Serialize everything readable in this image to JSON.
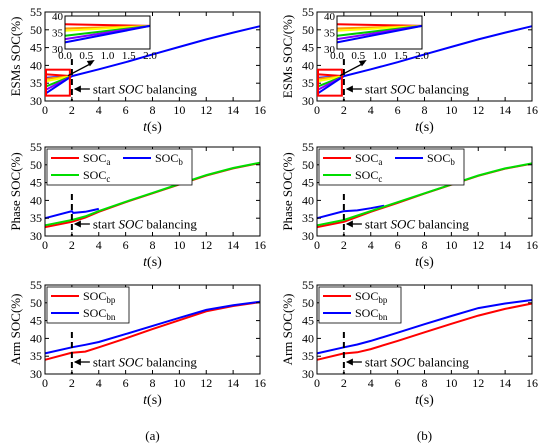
{
  "chart_data": [
    {
      "type": "line",
      "column": "a",
      "row": 0,
      "ylabel_pre": "ESMs SOC(%)",
      "ylabel_sep": "",
      "ylabel_post": "",
      "xlabel_pre": "",
      "xlabel_it": "t",
      "xlabel_post": "(s)",
      "xlim": [
        0,
        16
      ],
      "ylim": [
        30,
        55
      ],
      "xticks": [
        "0",
        "2",
        "4",
        "6",
        "8",
        "10",
        "12",
        "14",
        "16"
      ],
      "yticks": [
        "30",
        "35",
        "40",
        "45",
        "50",
        "55"
      ],
      "annotation": {
        "pre": "start ",
        "it": "SOC",
        "post": " balancing"
      },
      "balance_time": 2,
      "legend": [],
      "series": [
        {
          "color": "#0000ff",
          "x": [
            0,
            2,
            4,
            6,
            8,
            10,
            12,
            14,
            16
          ],
          "y": [
            36.5,
            37,
            38.9,
            40.9,
            43.1,
            45.2,
            47.3,
            49.2,
            51
          ]
        },
        {
          "color": "#ff0000",
          "x": [
            0,
            2
          ],
          "y": [
            37.5,
            37
          ]
        },
        {
          "color": "#ff9900",
          "x": [
            0,
            2
          ],
          "y": [
            36.2,
            37
          ]
        },
        {
          "color": "#ffff00",
          "x": [
            0,
            2
          ],
          "y": [
            35.5,
            37
          ]
        },
        {
          "color": "#00cc00",
          "x": [
            0,
            2
          ],
          "y": [
            34,
            37
          ]
        },
        {
          "color": "#8000ff",
          "x": [
            0,
            2
          ],
          "y": [
            33,
            37
          ]
        },
        {
          "color": "#0000ff",
          "x": [
            0,
            2
          ],
          "y": [
            32,
            37
          ]
        }
      ],
      "inset": {
        "xlim": [
          0,
          2
        ],
        "ylim": [
          30,
          40
        ],
        "xticks": [
          "0.0",
          "0.5",
          "1.0",
          "1.5",
          "2.0"
        ],
        "yticks": [
          "30",
          "35",
          "40"
        ],
        "series": [
          {
            "color": "#ff0000",
            "x": [
              0,
              2
            ],
            "y": [
              37.5,
              37
            ]
          },
          {
            "color": "#ff9900",
            "x": [
              0,
              2
            ],
            "y": [
              36.2,
              37
            ]
          },
          {
            "color": "#ffff00",
            "x": [
              0,
              2
            ],
            "y": [
              35.5,
              37
            ]
          },
          {
            "color": "#00cc00",
            "x": [
              0,
              2
            ],
            "y": [
              34,
              37
            ]
          },
          {
            "color": "#8000ff",
            "x": [
              0,
              2
            ],
            "y": [
              33,
              37
            ]
          },
          {
            "color": "#0000ff",
            "x": [
              0,
              2
            ],
            "y": [
              32,
              37
            ]
          }
        ]
      }
    },
    {
      "type": "line",
      "column": "b",
      "row": 0,
      "ylabel_pre": "ESMs SOC",
      "ylabel_sep": "/",
      "ylabel_post": "(%)",
      "xlabel_pre": "",
      "xlabel_it": "t",
      "xlabel_post": "(s)",
      "xlim": [
        0,
        16
      ],
      "ylim": [
        30,
        55
      ],
      "xticks": [
        "0",
        "2",
        "4",
        "6",
        "8",
        "10",
        "12",
        "14",
        "16"
      ],
      "yticks": [
        "30",
        "35",
        "40",
        "45",
        "50",
        "55"
      ],
      "annotation": {
        "pre": "start ",
        "it": "SOC",
        "post": " balancing"
      },
      "balance_time": 2,
      "legend": [],
      "series": [
        {
          "color": "#0000ff",
          "x": [
            0,
            2,
            4,
            6,
            8,
            10,
            12,
            14,
            16
          ],
          "y": [
            36.5,
            37,
            38.9,
            40.9,
            43.1,
            45.2,
            47.3,
            49.2,
            51
          ]
        },
        {
          "color": "#ff0000",
          "x": [
            0,
            2
          ],
          "y": [
            37.5,
            37
          ]
        },
        {
          "color": "#ff9900",
          "x": [
            0,
            2
          ],
          "y": [
            36.2,
            37
          ]
        },
        {
          "color": "#ffff00",
          "x": [
            0,
            2
          ],
          "y": [
            35.5,
            37
          ]
        },
        {
          "color": "#00cc00",
          "x": [
            0,
            2
          ],
          "y": [
            34,
            37
          ]
        },
        {
          "color": "#8000ff",
          "x": [
            0,
            2
          ],
          "y": [
            33,
            37
          ]
        },
        {
          "color": "#0000ff",
          "x": [
            0,
            2
          ],
          "y": [
            32,
            37
          ]
        }
      ],
      "inset": {
        "xlim": [
          0,
          2
        ],
        "ylim": [
          30,
          40
        ],
        "xticks": [
          "0.0",
          "0.5",
          "1.0",
          "1.5",
          "2.0"
        ],
        "yticks": [
          "30",
          "35",
          "40"
        ],
        "series": [
          {
            "color": "#ff0000",
            "x": [
              0,
              2
            ],
            "y": [
              37.5,
              37
            ]
          },
          {
            "color": "#ff9900",
            "x": [
              0,
              2
            ],
            "y": [
              36.2,
              37
            ]
          },
          {
            "color": "#ffff00",
            "x": [
              0,
              2
            ],
            "y": [
              35.5,
              37
            ]
          },
          {
            "color": "#00cc00",
            "x": [
              0,
              2
            ],
            "y": [
              34,
              37
            ]
          },
          {
            "color": "#8000ff",
            "x": [
              0,
              2
            ],
            "y": [
              33,
              37
            ]
          },
          {
            "color": "#0000ff",
            "x": [
              0,
              2
            ],
            "y": [
              32,
              37
            ]
          }
        ]
      }
    },
    {
      "type": "line",
      "column": "a",
      "row": 1,
      "ylabel_pre": "Phase SOC(%)",
      "ylabel_sep": "",
      "ylabel_post": "",
      "xlabel_pre": "",
      "xlabel_it": "t",
      "xlabel_post": "(s)",
      "xlim": [
        0,
        16
      ],
      "ylim": [
        30,
        55
      ],
      "xticks": [
        "0",
        "2",
        "4",
        "6",
        "8",
        "10",
        "12",
        "14",
        "16"
      ],
      "yticks": [
        "30",
        "35",
        "40",
        "45",
        "50",
        "55"
      ],
      "annotation": {
        "pre": "start ",
        "it": "SOC",
        "post": " balancing"
      },
      "balance_time": 2,
      "legend": [
        {
          "label": "SOC",
          "sub": "a",
          "color": "#ff0000"
        },
        {
          "label": "SOC",
          "sub": "b",
          "color": "#0000ff"
        },
        {
          "label": "SOC",
          "sub": "c",
          "color": "#00dd00"
        }
      ],
      "series": [
        {
          "color": "#0000ff",
          "x": [
            0,
            2,
            2.1,
            3,
            3.5,
            4
          ],
          "y": [
            35,
            37,
            36.5,
            36.8,
            37.2,
            37.6
          ]
        },
        {
          "color": "#ff0000",
          "x": [
            0,
            2,
            3,
            4,
            6,
            8,
            10,
            12,
            14,
            16
          ],
          "y": [
            32.5,
            34,
            35.2,
            36.8,
            39.5,
            42,
            44.5,
            47,
            49,
            50.5
          ]
        },
        {
          "color": "#00dd00",
          "x": [
            0,
            2,
            3,
            4,
            6,
            8,
            10,
            12,
            14,
            16
          ],
          "y": [
            33,
            34.5,
            35.5,
            37,
            39.6,
            42.1,
            44.6,
            47.1,
            49.1,
            50.6
          ]
        }
      ]
    },
    {
      "type": "line",
      "column": "b",
      "row": 1,
      "ylabel_pre": "Phase SOC(%)",
      "ylabel_sep": "",
      "ylabel_post": "",
      "xlabel_pre": "",
      "xlabel_it": "t",
      "xlabel_post": "(s)",
      "xlim": [
        0,
        16
      ],
      "ylim": [
        30,
        55
      ],
      "xticks": [
        "0",
        "2",
        "4",
        "6",
        "8",
        "10",
        "12",
        "14",
        "16"
      ],
      "yticks": [
        "30",
        "35",
        "40",
        "45",
        "50",
        "55"
      ],
      "annotation": {
        "pre": "start ",
        "it": "SOC",
        "post": " balancing"
      },
      "balance_time": 2,
      "legend": [
        {
          "label": "SOC",
          "sub": "a",
          "color": "#ff0000"
        },
        {
          "label": "SOC",
          "sub": "b",
          "color": "#0000ff"
        },
        {
          "label": "SOC",
          "sub": "c",
          "color": "#00dd00"
        }
      ],
      "series": [
        {
          "color": "#0000ff",
          "x": [
            0,
            2,
            2.1,
            3,
            4,
            5
          ],
          "y": [
            35,
            37,
            37,
            37.2,
            37.8,
            38.5
          ]
        },
        {
          "color": "#ff0000",
          "x": [
            0,
            2,
            4,
            6,
            8,
            10,
            12,
            14,
            16
          ],
          "y": [
            32.5,
            34,
            36.8,
            39.3,
            41.9,
            44.4,
            46.9,
            48.9,
            50.3
          ]
        },
        {
          "color": "#00dd00",
          "x": [
            0,
            2,
            4,
            6,
            8,
            10,
            12,
            14,
            16
          ],
          "y": [
            33,
            34.5,
            37,
            39.5,
            42,
            44.5,
            47,
            49,
            50.4
          ]
        }
      ]
    },
    {
      "type": "line",
      "column": "a",
      "row": 2,
      "ylabel_pre": "Arm SOC(%)",
      "ylabel_sep": "",
      "ylabel_post": "",
      "xlabel_pre": "",
      "xlabel_it": "t",
      "xlabel_post": "(s)",
      "xlim": [
        0,
        16
      ],
      "ylim": [
        30,
        55
      ],
      "xticks": [
        "0",
        "2",
        "4",
        "6",
        "8",
        "10",
        "12",
        "14",
        "16"
      ],
      "yticks": [
        "30",
        "35",
        "40",
        "45",
        "50",
        "55"
      ],
      "annotation": {
        "pre": "start ",
        "it": "SOC",
        "post": " balancing"
      },
      "balance_time": 2,
      "legend": [
        {
          "label": "SOC",
          "sub": "bp",
          "color": "#ff0000"
        },
        {
          "label": "SOC",
          "sub": "bn",
          "color": "#0000ff"
        }
      ],
      "series": [
        {
          "color": "#ff0000",
          "x": [
            0,
            2,
            2.1,
            3,
            4,
            6,
            8,
            10,
            12,
            14,
            16
          ],
          "y": [
            34,
            36,
            36,
            36.3,
            37.5,
            40,
            42.6,
            45.1,
            47.6,
            49.1,
            50.2
          ]
        },
        {
          "color": "#0000ff",
          "x": [
            0,
            2,
            3,
            4,
            6,
            8,
            10,
            12,
            14,
            16
          ],
          "y": [
            35.8,
            37.5,
            38.2,
            39,
            41.2,
            43.5,
            45.8,
            48,
            49.3,
            50.3
          ]
        }
      ]
    },
    {
      "type": "line",
      "column": "b",
      "row": 2,
      "ylabel_pre": "Arm SOC(%)",
      "ylabel_sep": "",
      "ylabel_post": "",
      "xlabel_pre": "",
      "xlabel_it": "t",
      "xlabel_post": "(s)",
      "xlim": [
        0,
        16
      ],
      "ylim": [
        30,
        55
      ],
      "xticks": [
        "0",
        "2",
        "4",
        "6",
        "8",
        "10",
        "12",
        "14",
        "16"
      ],
      "yticks": [
        "30",
        "35",
        "40",
        "45",
        "50",
        "55"
      ],
      "annotation": {
        "pre": "start ",
        "it": "SOC",
        "post": " balancing"
      },
      "balance_time": 2,
      "legend": [
        {
          "label": "SOC",
          "sub": "bp",
          "color": "#ff0000"
        },
        {
          "label": "SOC",
          "sub": "bn",
          "color": "#0000ff"
        }
      ],
      "series": [
        {
          "color": "#ff0000",
          "x": [
            0,
            2,
            2.1,
            3,
            4,
            6,
            8,
            10,
            12,
            14,
            16
          ],
          "y": [
            34,
            35.8,
            35.8,
            36.1,
            37,
            39.3,
            41.7,
            44.1,
            46.4,
            48.3,
            49.8
          ]
        },
        {
          "color": "#0000ff",
          "x": [
            0,
            2,
            3,
            4,
            6,
            8,
            10,
            12,
            14,
            16
          ],
          "y": [
            35.8,
            37.5,
            38.3,
            39.3,
            41.6,
            44,
            46.3,
            48.5,
            49.8,
            50.8
          ]
        }
      ]
    }
  ],
  "captions": [
    "(a)",
    "(b)"
  ]
}
